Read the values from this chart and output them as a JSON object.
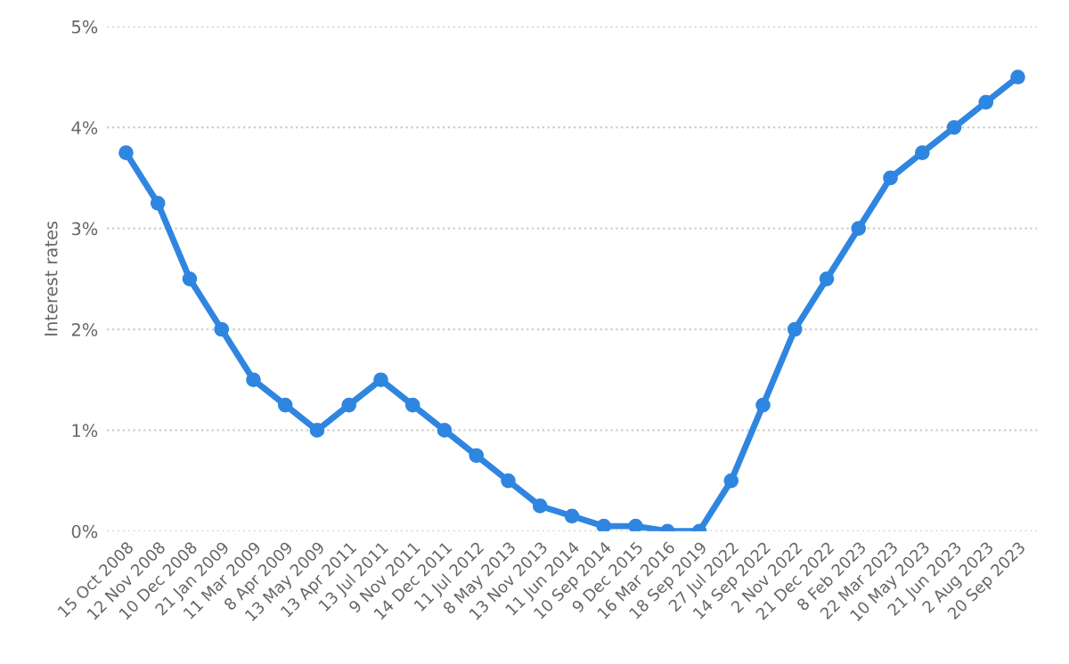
{
  "chart_data": {
    "type": "line",
    "ylabel": "Interest rates",
    "categories": [
      "15 Oct 2008",
      "12 Nov 2008",
      "10 Dec 2008",
      "21 Jan 2009",
      "11 Mar 2009",
      "8 Apr 2009",
      "13 May 2009",
      "13 Apr 2011",
      "13 Jul 2011",
      "9 Nov 2011",
      "14 Dec 2011",
      "11 Jul 2012",
      "8 May 2013",
      "13 Nov 2013",
      "11 Jun 2014",
      "10 Sep 2014",
      "9 Dec 2015",
      "16 Mar 2016",
      "18 Sep 2019",
      "27 Jul 2022",
      "14 Sep 2022",
      "2 Nov 2022",
      "21 Dec 2022",
      "8 Feb 2023",
      "22 Mar 2023",
      "10 May 2023",
      "21 Jun 2023",
      "2 Aug 2023",
      "20 Sep 2023"
    ],
    "series": [
      {
        "color": "#2f86e0",
        "values": [
          3.75,
          3.25,
          2.5,
          2.0,
          1.5,
          1.25,
          1.0,
          1.25,
          1.5,
          1.25,
          1.0,
          0.75,
          0.5,
          0.25,
          0.15,
          0.05,
          0.05,
          0,
          0,
          0.5,
          1.25,
          2.0,
          2.5,
          3.0,
          3.5,
          3.75,
          4.0,
          4.25,
          4.5
        ]
      }
    ],
    "ylim": [
      0,
      5
    ],
    "yticks": [
      {
        "value": 0,
        "label": "0%"
      },
      {
        "value": 1,
        "label": "1%"
      },
      {
        "value": 2,
        "label": "2%"
      },
      {
        "value": 3,
        "label": "3%"
      },
      {
        "value": 4,
        "label": "4%"
      },
      {
        "value": 5,
        "label": "5%"
      }
    ],
    "grid": "y",
    "marker": "circle",
    "line_style": "solid",
    "legend": false
  }
}
